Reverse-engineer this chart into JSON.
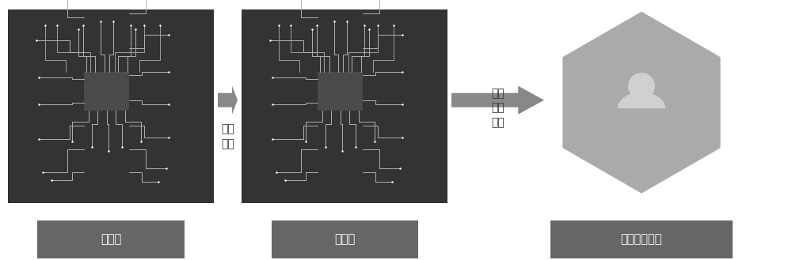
{
  "bg_color": "#ffffff",
  "brain_box_color": "#333333",
  "chip_color": "#555555",
  "trace_color": "#b0b0b0",
  "label_box_color": "#666666",
  "arrow_color": "#888888",
  "hexagon_color": "#aaaaaa",
  "person_color": "#d0d0d0",
  "arrow_label1": "训练\n学习",
  "arrow_label2": "测试\n评价\n调整",
  "label1": "训练集",
  "label2": "测试集",
  "label3": "智能筛查系统",
  "fig_width": 10.0,
  "fig_height": 3.29
}
